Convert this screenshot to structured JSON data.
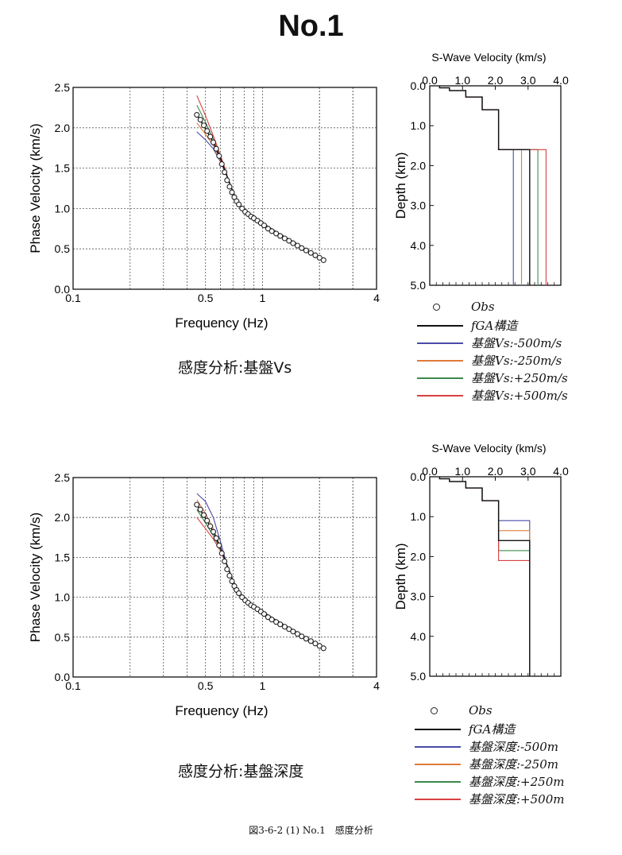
{
  "page_title": "No.1",
  "footer_caption": "図3-6-2 (1) No.1　感度分析",
  "colors": {
    "observed": "#222222",
    "fga": "#111111",
    "minus500": "#4a4aa8",
    "minus250": "#e07a3a",
    "plus250": "#3c8a4c",
    "plus500": "#d94040"
  },
  "sections": [
    {
      "caption": "感度分析:基盤Vs",
      "legend": [
        {
          "label": "Obs",
          "marker": "circle",
          "color_key": "observed"
        },
        {
          "label": "fGA構造",
          "marker": "line",
          "color_key": "fga"
        },
        {
          "label": "基盤Vs:-500m/s",
          "marker": "line",
          "color_key": "minus500"
        },
        {
          "label": "基盤Vs:-250m/s",
          "marker": "line",
          "color_key": "minus250"
        },
        {
          "label": "基盤Vs:+250m/s",
          "marker": "line",
          "color_key": "plus250"
        },
        {
          "label": "基盤Vs:+500m/s",
          "marker": "line",
          "color_key": "plus500"
        }
      ]
    },
    {
      "caption": "感度分析:基盤深度",
      "legend": [
        {
          "label": "Obs",
          "marker": "circle",
          "color_key": "observed"
        },
        {
          "label": "fGA構造",
          "marker": "line",
          "color_key": "fga"
        },
        {
          "label": "基盤深度:-500m",
          "marker": "line",
          "color_key": "minus500"
        },
        {
          "label": "基盤深度:-250m",
          "marker": "line",
          "color_key": "minus250"
        },
        {
          "label": "基盤深度:+250m",
          "marker": "line",
          "color_key": "plus250"
        },
        {
          "label": "基盤深度:+500m",
          "marker": "line",
          "color_key": "plus500"
        }
      ]
    }
  ],
  "chart_data": [
    {
      "id": "dispersion-vs",
      "type": "scatter",
      "xlabel": "Frequency (Hz)",
      "ylabel": "Phase Velocity (km/s)",
      "xscale": "log",
      "xlim": [
        0.1,
        4
      ],
      "ylim": [
        0.0,
        2.5
      ],
      "xticks": [
        0.1,
        0.5,
        1,
        4
      ],
      "xtick_labels": [
        "0.1",
        "0.5",
        "1",
        "4"
      ],
      "yticks": [
        0.0,
        0.5,
        1.0,
        1.5,
        2.0,
        2.5
      ],
      "ytick_labels": [
        "0.0",
        "0.5",
        "1.0",
        "1.5",
        "2.0",
        "2.5"
      ],
      "grid": true,
      "observed": {
        "name": "Obs",
        "x": [
          0.45,
          0.47,
          0.49,
          0.51,
          0.53,
          0.55,
          0.57,
          0.59,
          0.61,
          0.63,
          0.65,
          0.67,
          0.69,
          0.71,
          0.73,
          0.75,
          0.78,
          0.81,
          0.84,
          0.87,
          0.9,
          0.94,
          0.98,
          1.02,
          1.07,
          1.12,
          1.18,
          1.24,
          1.31,
          1.38,
          1.45,
          1.53,
          1.61,
          1.7,
          1.8,
          1.9,
          2.0,
          2.1
        ],
        "y": [
          2.16,
          2.1,
          2.03,
          1.96,
          1.89,
          1.82,
          1.74,
          1.65,
          1.55,
          1.45,
          1.35,
          1.27,
          1.2,
          1.14,
          1.09,
          1.05,
          1.0,
          0.96,
          0.93,
          0.9,
          0.88,
          0.85,
          0.82,
          0.79,
          0.75,
          0.72,
          0.69,
          0.66,
          0.63,
          0.6,
          0.57,
          0.54,
          0.51,
          0.48,
          0.45,
          0.42,
          0.39,
          0.36
        ]
      },
      "series": [
        {
          "name": "fGA構造",
          "color_key": "fga",
          "x": [
            0.45,
            0.5,
            0.55,
            0.6,
            0.65,
            0.7,
            0.75,
            0.8,
            0.9,
            1.0,
            1.2,
            1.5,
            1.8,
            2.1
          ],
          "y": [
            2.16,
            1.99,
            1.82,
            1.62,
            1.4,
            1.2,
            1.06,
            0.98,
            0.89,
            0.82,
            0.7,
            0.57,
            0.45,
            0.36
          ]
        },
        {
          "name": "基盤Vs:-500m/s",
          "color_key": "minus500",
          "x": [
            0.45,
            0.5,
            0.55,
            0.6,
            0.65
          ],
          "y": [
            1.95,
            1.85,
            1.74,
            1.58,
            1.4
          ]
        },
        {
          "name": "基盤Vs:-250m/s",
          "color_key": "minus250",
          "x": [
            0.45,
            0.5,
            0.55,
            0.6,
            0.65
          ],
          "y": [
            2.06,
            1.92,
            1.78,
            1.6,
            1.4
          ]
        },
        {
          "name": "基盤Vs:+250m/s",
          "color_key": "plus250",
          "x": [
            0.45,
            0.5,
            0.55,
            0.6,
            0.65
          ],
          "y": [
            2.28,
            2.07,
            1.86,
            1.64,
            1.41
          ]
        },
        {
          "name": "基盤Vs:+500m/s",
          "color_key": "plus500",
          "x": [
            0.45,
            0.5,
            0.55,
            0.6,
            0.65
          ],
          "y": [
            2.4,
            2.15,
            1.9,
            1.66,
            1.42
          ]
        }
      ]
    },
    {
      "id": "profile-vs",
      "type": "line",
      "title": "S-Wave Velocity (km/s)",
      "ylabel": "Depth (km)",
      "xlim": [
        0.0,
        4.0
      ],
      "ylim": [
        0.0,
        5.0
      ],
      "y_inverted": true,
      "xticks": [
        0.0,
        1.0,
        2.0,
        3.0,
        4.0
      ],
      "xtick_labels": [
        "0.0",
        "1.0",
        "2.0",
        "3.0",
        "4.0"
      ],
      "yticks": [
        0.0,
        1.0,
        2.0,
        3.0,
        4.0,
        5.0
      ],
      "ytick_labels": [
        "0.0",
        "1.0",
        "2.0",
        "3.0",
        "4.0",
        "5.0"
      ],
      "grid": false,
      "series": [
        {
          "name": "fGA構造",
          "color_key": "fga",
          "vs": [
            0.3,
            0.6,
            1.1,
            1.6,
            2.1,
            3.05
          ],
          "bottoms": [
            0.05,
            0.12,
            0.28,
            0.6,
            1.6
          ]
        },
        {
          "name": "基盤Vs:-500m/s",
          "color_key": "minus500",
          "vs": [
            0.3,
            0.6,
            1.1,
            1.6,
            2.1,
            2.55
          ],
          "bottoms": [
            0.05,
            0.12,
            0.28,
            0.6,
            1.6
          ]
        },
        {
          "name": "基盤Vs:-250m/s",
          "color_key": "minus250",
          "vs": [
            0.3,
            0.6,
            1.1,
            1.6,
            2.1,
            2.8
          ],
          "bottoms": [
            0.05,
            0.12,
            0.28,
            0.6,
            1.6
          ]
        },
        {
          "name": "基盤Vs:+250m/s",
          "color_key": "plus250",
          "vs": [
            0.3,
            0.6,
            1.1,
            1.6,
            2.1,
            3.3
          ],
          "bottoms": [
            0.05,
            0.12,
            0.28,
            0.6,
            1.6
          ]
        },
        {
          "name": "基盤Vs:+500m/s",
          "color_key": "plus500",
          "vs": [
            0.3,
            0.6,
            1.1,
            1.6,
            2.1,
            3.55
          ],
          "bottoms": [
            0.05,
            0.12,
            0.28,
            0.6,
            1.6
          ]
        }
      ]
    },
    {
      "id": "dispersion-depth",
      "type": "scatter",
      "xlabel": "Frequency (Hz)",
      "ylabel": "Phase Velocity (km/s)",
      "xscale": "log",
      "xlim": [
        0.1,
        4
      ],
      "ylim": [
        0.0,
        2.5
      ],
      "xticks": [
        0.1,
        0.5,
        1,
        4
      ],
      "xtick_labels": [
        "0.1",
        "0.5",
        "1",
        "4"
      ],
      "yticks": [
        0.0,
        0.5,
        1.0,
        1.5,
        2.0,
        2.5
      ],
      "ytick_labels": [
        "0.0",
        "0.5",
        "1.0",
        "1.5",
        "2.0",
        "2.5"
      ],
      "grid": true,
      "observed": {
        "name": "Obs",
        "x": [
          0.45,
          0.47,
          0.49,
          0.51,
          0.53,
          0.55,
          0.57,
          0.59,
          0.61,
          0.63,
          0.65,
          0.67,
          0.69,
          0.71,
          0.73,
          0.75,
          0.78,
          0.81,
          0.84,
          0.87,
          0.9,
          0.94,
          0.98,
          1.02,
          1.07,
          1.12,
          1.18,
          1.24,
          1.31,
          1.38,
          1.45,
          1.53,
          1.61,
          1.7,
          1.8,
          1.9,
          2.0,
          2.1
        ],
        "y": [
          2.16,
          2.1,
          2.03,
          1.96,
          1.89,
          1.82,
          1.74,
          1.65,
          1.55,
          1.45,
          1.35,
          1.27,
          1.2,
          1.14,
          1.09,
          1.05,
          1.0,
          0.96,
          0.93,
          0.9,
          0.88,
          0.85,
          0.82,
          0.79,
          0.75,
          0.72,
          0.69,
          0.66,
          0.63,
          0.6,
          0.57,
          0.54,
          0.51,
          0.48,
          0.45,
          0.42,
          0.39,
          0.36
        ]
      },
      "series": [
        {
          "name": "fGA構造",
          "color_key": "fga",
          "x": [
            0.45,
            0.5,
            0.55,
            0.6,
            0.65,
            0.7,
            0.75,
            0.8,
            0.9,
            1.0,
            1.2,
            1.5,
            1.8,
            2.1
          ],
          "y": [
            2.16,
            1.99,
            1.82,
            1.62,
            1.4,
            1.2,
            1.06,
            0.98,
            0.89,
            0.82,
            0.7,
            0.57,
            0.45,
            0.36
          ]
        },
        {
          "name": "基盤深度:-500m",
          "color_key": "minus500",
          "x": [
            0.45,
            0.5,
            0.55,
            0.6,
            0.65
          ],
          "y": [
            2.3,
            2.2,
            2.0,
            1.7,
            1.4
          ]
        },
        {
          "name": "基盤深度:-250m",
          "color_key": "minus250",
          "x": [
            0.45,
            0.5,
            0.55,
            0.6,
            0.65
          ],
          "y": [
            2.22,
            2.05,
            1.86,
            1.63,
            1.4
          ]
        },
        {
          "name": "基盤深度:+250m",
          "color_key": "plus250",
          "x": [
            0.45,
            0.5,
            0.55,
            0.6,
            0.65
          ],
          "y": [
            2.1,
            1.93,
            1.77,
            1.6,
            1.4
          ]
        },
        {
          "name": "基盤深度:+500m",
          "color_key": "plus500",
          "x": [
            0.45,
            0.5,
            0.55,
            0.6,
            0.65
          ],
          "y": [
            2.0,
            1.86,
            1.73,
            1.58,
            1.4
          ]
        }
      ]
    },
    {
      "id": "profile-depth",
      "type": "line",
      "title": "S-Wave Velocity (km/s)",
      "ylabel": "Depth (km)",
      "xlim": [
        0.0,
        4.0
      ],
      "ylim": [
        0.0,
        5.0
      ],
      "y_inverted": true,
      "xticks": [
        0.0,
        1.0,
        2.0,
        3.0,
        4.0
      ],
      "xtick_labels": [
        "0.0",
        "1.0",
        "2.0",
        "3.0",
        "4.0"
      ],
      "yticks": [
        0.0,
        1.0,
        2.0,
        3.0,
        4.0,
        5.0
      ],
      "ytick_labels": [
        "0.0",
        "1.0",
        "2.0",
        "3.0",
        "4.0",
        "5.0"
      ],
      "grid": false,
      "series": [
        {
          "name": "fGA構造",
          "color_key": "fga",
          "vs": [
            0.3,
            0.6,
            1.1,
            1.6,
            2.1,
            3.05
          ],
          "bottoms": [
            0.05,
            0.12,
            0.28,
            0.6,
            1.6
          ]
        },
        {
          "name": "基盤深度:-500m",
          "color_key": "minus500",
          "vs": [
            0.3,
            0.6,
            1.1,
            1.6,
            2.1,
            3.05
          ],
          "bottoms": [
            0.05,
            0.12,
            0.28,
            0.6,
            1.1
          ]
        },
        {
          "name": "基盤深度:-250m",
          "color_key": "minus250",
          "vs": [
            0.3,
            0.6,
            1.1,
            1.6,
            2.1,
            3.05
          ],
          "bottoms": [
            0.05,
            0.12,
            0.28,
            0.6,
            1.35
          ]
        },
        {
          "name": "基盤深度:+250m",
          "color_key": "plus250",
          "vs": [
            0.3,
            0.6,
            1.1,
            1.6,
            2.1,
            3.05
          ],
          "bottoms": [
            0.05,
            0.12,
            0.28,
            0.6,
            1.85
          ]
        },
        {
          "name": "基盤深度:+500m",
          "color_key": "plus500",
          "vs": [
            0.3,
            0.6,
            1.1,
            1.6,
            2.1,
            3.05
          ],
          "bottoms": [
            0.05,
            0.12,
            0.28,
            0.6,
            2.1
          ]
        }
      ]
    }
  ]
}
